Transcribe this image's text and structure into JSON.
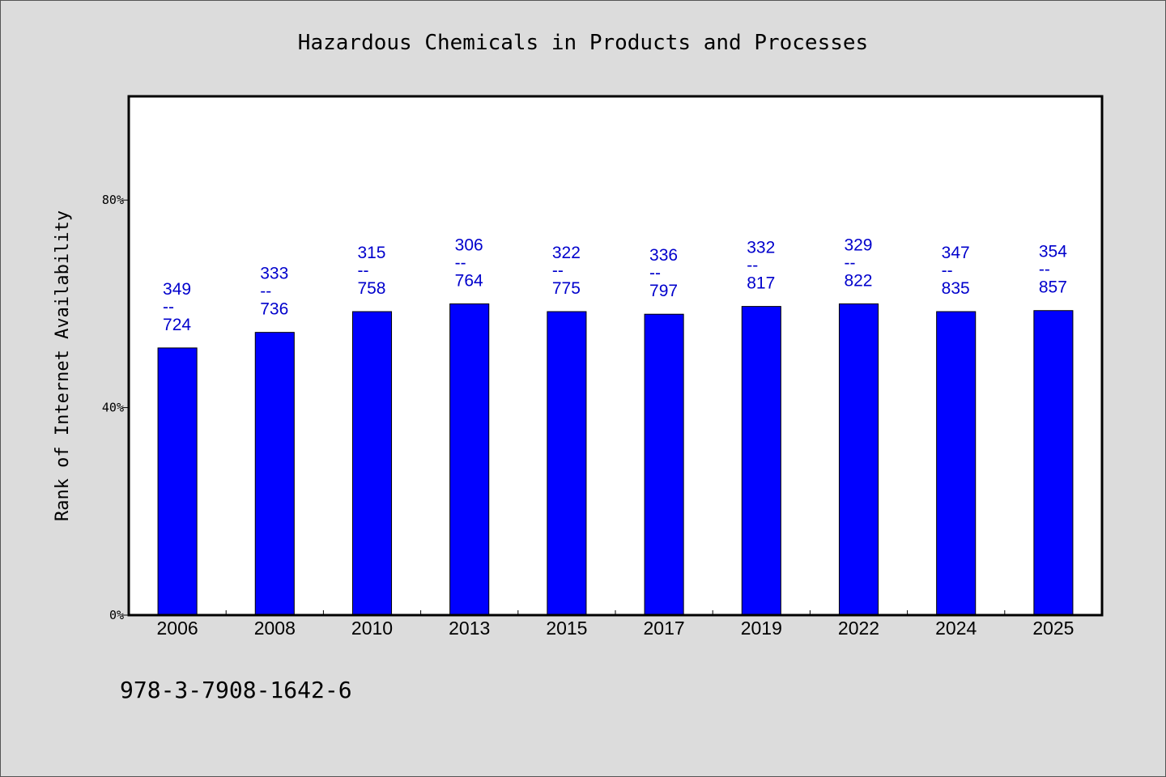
{
  "chart_data": {
    "type": "bar",
    "title": "Hazardous Chemicals in Products and Processes",
    "ylabel": "Rank of Internet Availability",
    "xlabel": "",
    "ylim": [
      0,
      100
    ],
    "yticks": [
      {
        "value": 0,
        "label": "0%"
      },
      {
        "value": 40,
        "label": "40%"
      },
      {
        "value": 80,
        "label": "80%"
      }
    ],
    "categories": [
      "2006",
      "2008",
      "2010",
      "2013",
      "2015",
      "2017",
      "2019",
      "2022",
      "2024",
      "2025"
    ],
    "values": [
      51.5,
      54.5,
      58.5,
      60.0,
      58.5,
      58.0,
      59.5,
      60.0,
      58.5,
      58.7
    ],
    "annotations": [
      {
        "top": "349",
        "sep": "--",
        "bottom": "724"
      },
      {
        "top": "333",
        "sep": "--",
        "bottom": "736"
      },
      {
        "top": "315",
        "sep": "--",
        "bottom": "758"
      },
      {
        "top": "306",
        "sep": "--",
        "bottom": "764"
      },
      {
        "top": "322",
        "sep": "--",
        "bottom": "775"
      },
      {
        "top": "336",
        "sep": "--",
        "bottom": "797"
      },
      {
        "top": "332",
        "sep": "--",
        "bottom": "817"
      },
      {
        "top": "329",
        "sep": "--",
        "bottom": "822"
      },
      {
        "top": "347",
        "sep": "--",
        "bottom": "835"
      },
      {
        "top": "354",
        "sep": "--",
        "bottom": "857"
      }
    ],
    "bar_color": "#0000ff",
    "label_color": "#0000cc",
    "grid": false,
    "legend": "none"
  },
  "footer_text": "978-3-7908-1642-6"
}
